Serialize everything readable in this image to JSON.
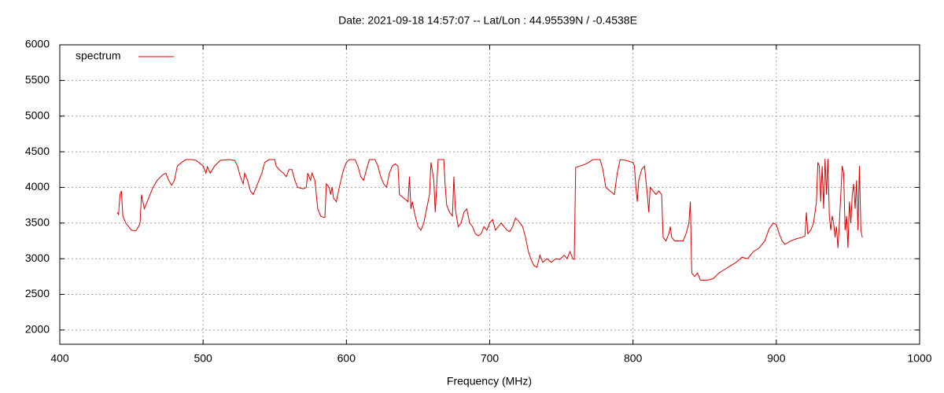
{
  "chart_data": {
    "type": "line",
    "title": "Date: 2021-09-18 14:57:07  --  Lat/Lon : 44.95539N / -0.4538E",
    "x_label": "Frequency (MHz)",
    "xlim": [
      400,
      1000
    ],
    "xticks": [
      400,
      500,
      600,
      700,
      800,
      900,
      1000
    ],
    "ylim": [
      1800,
      6000
    ],
    "yticks": [
      2000,
      2500,
      3000,
      3500,
      4000,
      4500,
      5000,
      5500,
      6000
    ],
    "grid": true,
    "legend": "top-left",
    "x": [
      440,
      441,
      442,
      443,
      444,
      446,
      448,
      450,
      453,
      455,
      456,
      457,
      458,
      459,
      462,
      465,
      468,
      472,
      474,
      476,
      478,
      480,
      482,
      485,
      488,
      492,
      495,
      497,
      500,
      502,
      503,
      505,
      508,
      512,
      518,
      522,
      524,
      526,
      528,
      529,
      531,
      533,
      535,
      538,
      541,
      543,
      546,
      550,
      551,
      553,
      556,
      558,
      560,
      562,
      564,
      566,
      570,
      572,
      573,
      575,
      576,
      578,
      580,
      582,
      584,
      585,
      586,
      588,
      589,
      590,
      591,
      593,
      595,
      598,
      600,
      602,
      606,
      608,
      610,
      612,
      614,
      616,
      620,
      622,
      624,
      626,
      628,
      630,
      632,
      634,
      636,
      637,
      640,
      643,
      644,
      645,
      646,
      648,
      650,
      652,
      654,
      656,
      658,
      659,
      661,
      662,
      664,
      668,
      669,
      670,
      672,
      674,
      675,
      676,
      678,
      680,
      682,
      684,
      686,
      688,
      690,
      692,
      694,
      696,
      698,
      700,
      702,
      704,
      706,
      708,
      710,
      712,
      714,
      716,
      718,
      720,
      723,
      725,
      727,
      729,
      731,
      733,
      735,
      737,
      740,
      743,
      746,
      749,
      752,
      754,
      756,
      758,
      759,
      760,
      763,
      766,
      769,
      772,
      777,
      779,
      781,
      784,
      787,
      789,
      791,
      795,
      798,
      800,
      801,
      802,
      803,
      804,
      806,
      808,
      809,
      810,
      811,
      812,
      814,
      816,
      818,
      820,
      821,
      823,
      825,
      826,
      827,
      829,
      832,
      835,
      837,
      839,
      840,
      841,
      843,
      845,
      847,
      852,
      856,
      860,
      864,
      868,
      872,
      876,
      880,
      884,
      888,
      892,
      895,
      898,
      900,
      902,
      904,
      906,
      910,
      914,
      918,
      920,
      921,
      922,
      924,
      926,
      928,
      929,
      930,
      931,
      932,
      933,
      934,
      935,
      936,
      937,
      938,
      939,
      940,
      941,
      942,
      943,
      944,
      945,
      946,
      947,
      948,
      949,
      950,
      951,
      952,
      953,
      954,
      955,
      956,
      957,
      958,
      959,
      960
    ],
    "series": [
      {
        "name": "spectrum",
        "color": "#dd0000",
        "values": [
          3650,
          3620,
          3900,
          3950,
          3600,
          3500,
          3450,
          3400,
          3390,
          3450,
          3500,
          3900,
          3800,
          3700,
          3850,
          4000,
          4100,
          4180,
          4200,
          4100,
          4030,
          4100,
          4300,
          4350,
          4390,
          4390,
          4380,
          4350,
          4300,
          4200,
          4290,
          4200,
          4300,
          4380,
          4390,
          4380,
          4300,
          4150,
          4050,
          4200,
          4100,
          3950,
          3900,
          4050,
          4200,
          4350,
          4390,
          4390,
          4300,
          4250,
          4200,
          4150,
          4250,
          4250,
          4100,
          4000,
          3980,
          4000,
          4200,
          4100,
          4200,
          4100,
          3700,
          3600,
          3580,
          3580,
          4050,
          4000,
          3900,
          4000,
          3850,
          3800,
          4000,
          4250,
          4350,
          4390,
          4390,
          4300,
          4150,
          4100,
          4250,
          4390,
          4390,
          4300,
          4150,
          4050,
          4000,
          4200,
          4300,
          4330,
          4300,
          3900,
          3850,
          3800,
          4150,
          3700,
          3800,
          3600,
          3450,
          3400,
          3500,
          3700,
          3900,
          4350,
          4100,
          3650,
          4390,
          4390,
          4000,
          3750,
          3650,
          3600,
          4150,
          3700,
          3450,
          3500,
          3650,
          3700,
          3500,
          3450,
          3350,
          3320,
          3350,
          3450,
          3400,
          3500,
          3550,
          3400,
          3450,
          3500,
          3450,
          3400,
          3380,
          3450,
          3570,
          3530,
          3450,
          3300,
          3100,
          2980,
          2900,
          2880,
          3050,
          2950,
          3000,
          2950,
          3000,
          2990,
          3050,
          3000,
          3100,
          3000,
          2990,
          4280,
          4300,
          4320,
          4350,
          4390,
          4390,
          4250,
          4000,
          3950,
          3900,
          4200,
          4390,
          4380,
          4360,
          4350,
          4300,
          4000,
          3800,
          4100,
          4250,
          4300,
          4100,
          3900,
          3650,
          4000,
          3950,
          3900,
          3950,
          3900,
          3300,
          3250,
          3350,
          3450,
          3300,
          3250,
          3250,
          3250,
          3350,
          3500,
          3800,
          2800,
          2750,
          2800,
          2700,
          2700,
          2720,
          2800,
          2850,
          2900,
          2950,
          3020,
          3000,
          3100,
          3150,
          3250,
          3420,
          3500,
          3480,
          3350,
          3250,
          3200,
          3250,
          3280,
          3300,
          3320,
          3650,
          3350,
          3400,
          3500,
          3800,
          4350,
          4300,
          3800,
          4300,
          3700,
          4400,
          3900,
          4400,
          3600,
          3400,
          3600,
          3500,
          3300,
          3450,
          3150,
          3500,
          3900,
          4300,
          4200,
          3400,
          3600,
          3150,
          3800,
          3500,
          3900,
          4050,
          3700,
          4100,
          3400,
          4300,
          3400,
          3300
        ]
      }
    ]
  }
}
